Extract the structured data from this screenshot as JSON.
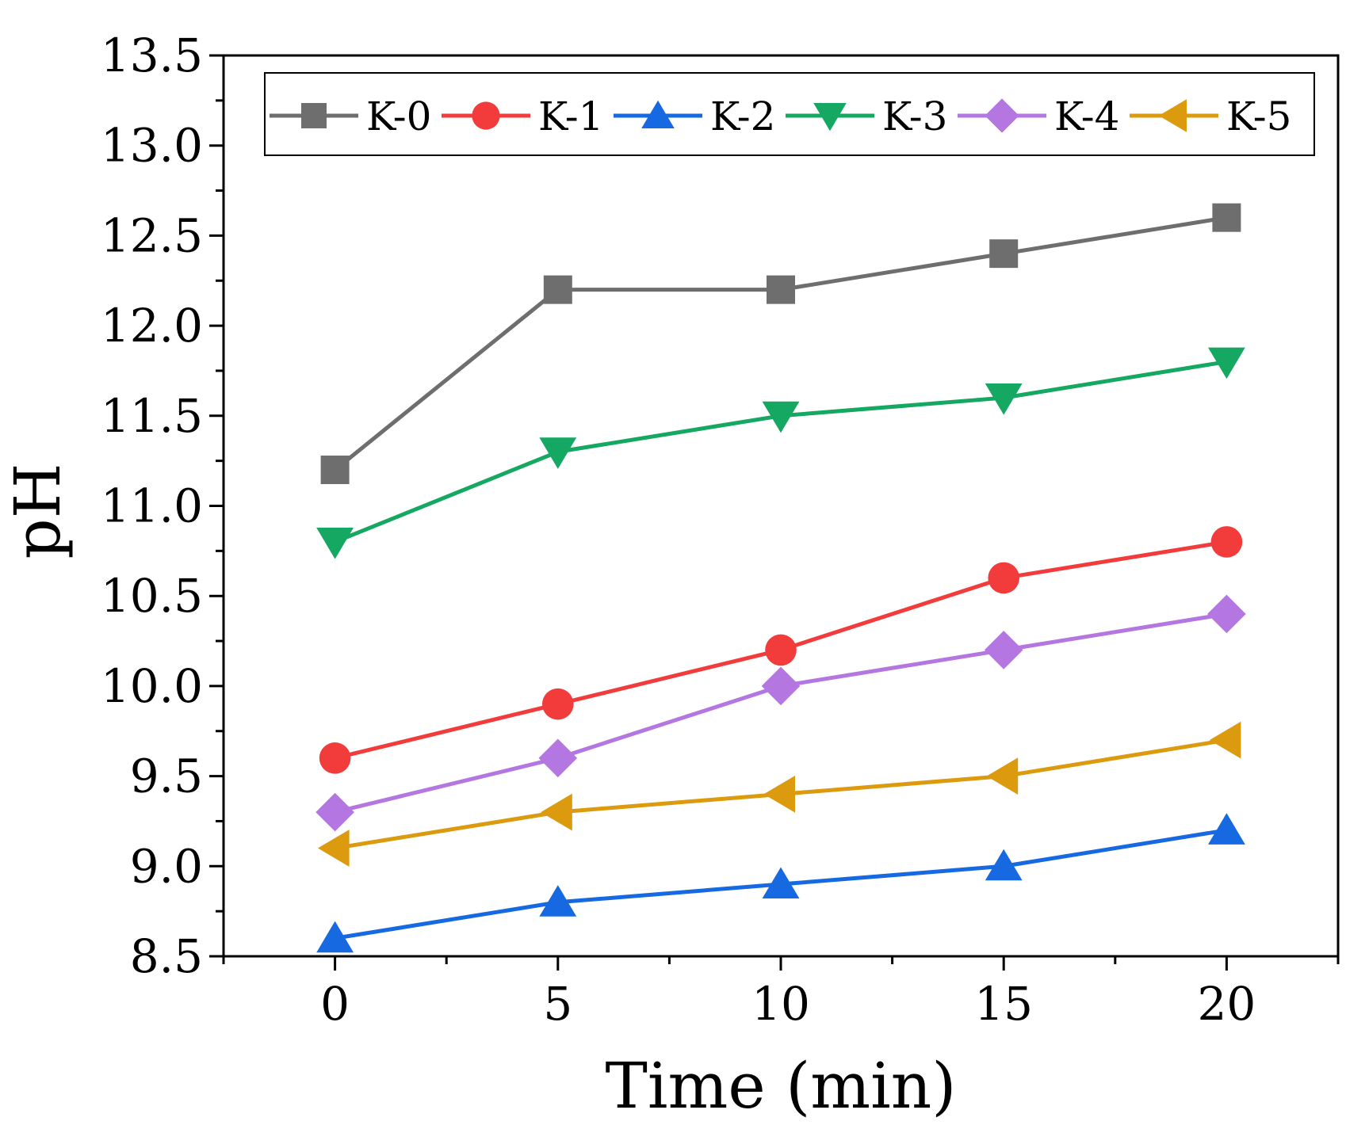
{
  "chart_data": {
    "type": "line",
    "title": "",
    "xlabel": "Time (min)",
    "ylabel": "pH",
    "xlim": [
      -2.5,
      22.5
    ],
    "ylim": [
      8.5,
      13.5
    ],
    "x": [
      0,
      5,
      10,
      15,
      20
    ],
    "x_ticks": [
      "0",
      "5",
      "10",
      "15",
      "20"
    ],
    "y_ticks": [
      "8.5",
      "9.0",
      "9.5",
      "10.0",
      "10.5",
      "11.0",
      "11.5",
      "12.0",
      "12.5",
      "13.0",
      "13.5"
    ],
    "grid": false,
    "legend_position": "top",
    "series": [
      {
        "name": "K-0",
        "color": "#6e6e6e",
        "marker": "square",
        "values": [
          11.2,
          12.2,
          12.2,
          12.4,
          12.6
        ]
      },
      {
        "name": "K-1",
        "color": "#f23c3c",
        "marker": "circle",
        "values": [
          9.6,
          9.9,
          10.2,
          10.6,
          10.8
        ]
      },
      {
        "name": "K-2",
        "color": "#1669e0",
        "marker": "triangle-up",
        "values": [
          8.6,
          8.8,
          8.9,
          9.0,
          9.2
        ]
      },
      {
        "name": "K-3",
        "color": "#14a862",
        "marker": "triangle-down",
        "values": [
          10.8,
          11.3,
          11.5,
          11.6,
          11.8
        ]
      },
      {
        "name": "K-4",
        "color": "#b476e0",
        "marker": "diamond",
        "values": [
          9.3,
          9.6,
          10.0,
          10.2,
          10.4
        ]
      },
      {
        "name": "K-5",
        "color": "#dc9a0e",
        "marker": "triangle-left",
        "values": [
          9.1,
          9.3,
          9.4,
          9.5,
          9.7
        ]
      }
    ]
  }
}
